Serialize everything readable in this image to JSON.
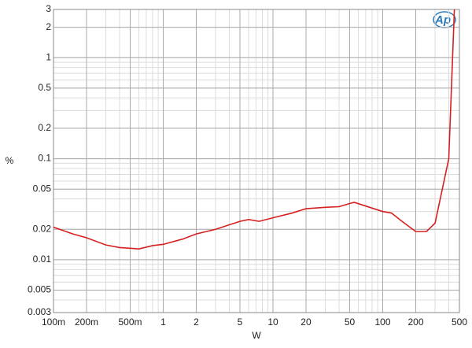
{
  "chart_data": {
    "type": "line",
    "x_label": "W",
    "y_label": "%",
    "logo": "Ap",
    "x_log": true,
    "y_log": true,
    "grid": true,
    "minor_grid": true,
    "xlim": [
      0.1,
      500
    ],
    "ylim": [
      0.003,
      3
    ],
    "xticks": [
      {
        "value": 0.1,
        "label": "100m"
      },
      {
        "value": 0.2,
        "label": "200m"
      },
      {
        "value": 0.5,
        "label": "500m"
      },
      1,
      2,
      5,
      10,
      20,
      50,
      100,
      200,
      500
    ],
    "yticks": [
      3,
      2,
      1,
      0.5,
      0.2,
      0.1,
      0.05,
      0.02,
      0.01,
      0.005,
      0.003
    ],
    "x": [
      0.1,
      0.15,
      0.2,
      0.3,
      0.4,
      0.5,
      0.6,
      0.8,
      1,
      1.5,
      2,
      3,
      5,
      6,
      7.5,
      10,
      15,
      20,
      30,
      40,
      50,
      55,
      70,
      100,
      120,
      150,
      200,
      250,
      300,
      400,
      450
    ],
    "series": [
      {
        "color": "#d62020",
        "values": [
          0.021,
          0.018,
          0.0165,
          0.014,
          0.0132,
          0.013,
          0.0128,
          0.0138,
          0.0142,
          0.016,
          0.018,
          0.02,
          0.024,
          0.025,
          0.024,
          0.026,
          0.029,
          0.032,
          0.033,
          0.0335,
          0.036,
          0.037,
          0.034,
          0.03,
          0.029,
          0.024,
          0.019,
          0.019,
          0.023,
          0.1,
          3
        ]
      }
    ]
  }
}
